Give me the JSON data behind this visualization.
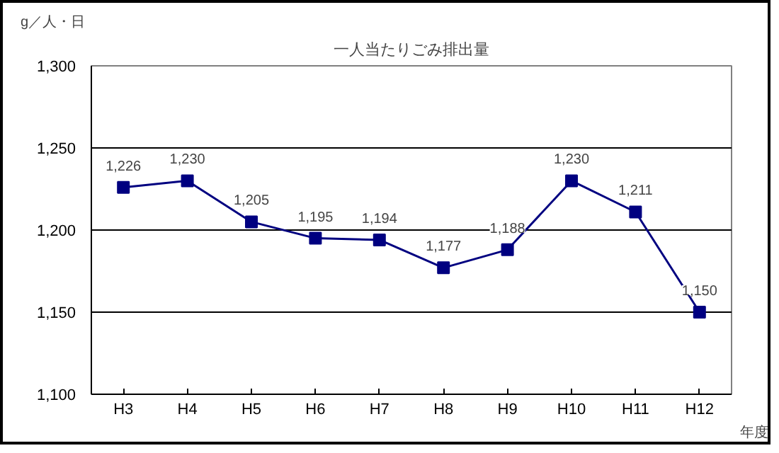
{
  "chart_data": {
    "type": "line",
    "title": "一人当たりごみ排出量",
    "ylabel": "g／人・日",
    "xlabel": "年度",
    "categories": [
      "H3",
      "H4",
      "H5",
      "H6",
      "H7",
      "H8",
      "H9",
      "H10",
      "H11",
      "H12"
    ],
    "series": [
      {
        "color": "#000080",
        "values": [
          1226,
          1230,
          1205,
          1195,
          1194,
          1177,
          1188,
          1230,
          1211,
          1150
        ],
        "value_labels": [
          "1,226",
          "1,230",
          "1,205",
          "1,195",
          "1,194",
          "1,177",
          "1,188",
          "1,230",
          "1,211",
          "1,150"
        ]
      }
    ],
    "ylim": [
      1100,
      1300
    ],
    "yticks": [
      {
        "value": 1100,
        "label": "1,100"
      },
      {
        "value": 1150,
        "label": "1,150"
      },
      {
        "value": 1200,
        "label": "1,200"
      },
      {
        "value": 1250,
        "label": "1,250"
      },
      {
        "value": 1300,
        "label": "1,300"
      }
    ],
    "grid": "y",
    "marker": "square",
    "line_style": "solid"
  }
}
